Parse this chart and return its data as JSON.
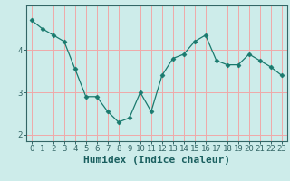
{
  "x": [
    0,
    1,
    2,
    3,
    4,
    5,
    6,
    7,
    8,
    9,
    10,
    11,
    12,
    13,
    14,
    15,
    16,
    17,
    18,
    19,
    20,
    21,
    22,
    23
  ],
  "y": [
    4.7,
    4.5,
    4.35,
    4.2,
    3.55,
    2.9,
    2.9,
    2.55,
    2.3,
    2.4,
    3.0,
    2.55,
    3.4,
    3.8,
    3.9,
    4.2,
    4.35,
    3.75,
    3.65,
    3.65,
    3.9,
    3.75,
    3.6,
    3.4
  ],
  "line_color": "#1a7a6e",
  "marker": "D",
  "marker_size": 2.5,
  "bg_color": "#cdecea",
  "grid_color": "#f0a8a8",
  "xlabel": "Humidex (Indice chaleur)",
  "xlabel_fontsize": 8,
  "yticks": [
    2,
    3,
    4
  ],
  "ylim": [
    1.85,
    5.05
  ],
  "xlim": [
    -0.5,
    23.5
  ],
  "xticks": [
    0,
    1,
    2,
    3,
    4,
    5,
    6,
    7,
    8,
    9,
    10,
    11,
    12,
    13,
    14,
    15,
    16,
    17,
    18,
    19,
    20,
    21,
    22,
    23
  ],
  "xtick_labels": [
    "0",
    "1",
    "2",
    "3",
    "4",
    "5",
    "6",
    "7",
    "8",
    "9",
    "10",
    "11",
    "12",
    "13",
    "14",
    "15",
    "16",
    "17",
    "18",
    "19",
    "20",
    "21",
    "22",
    "23"
  ],
  "tick_fontsize": 6.5,
  "axis_color": "#336666",
  "label_color": "#1a5f5f"
}
